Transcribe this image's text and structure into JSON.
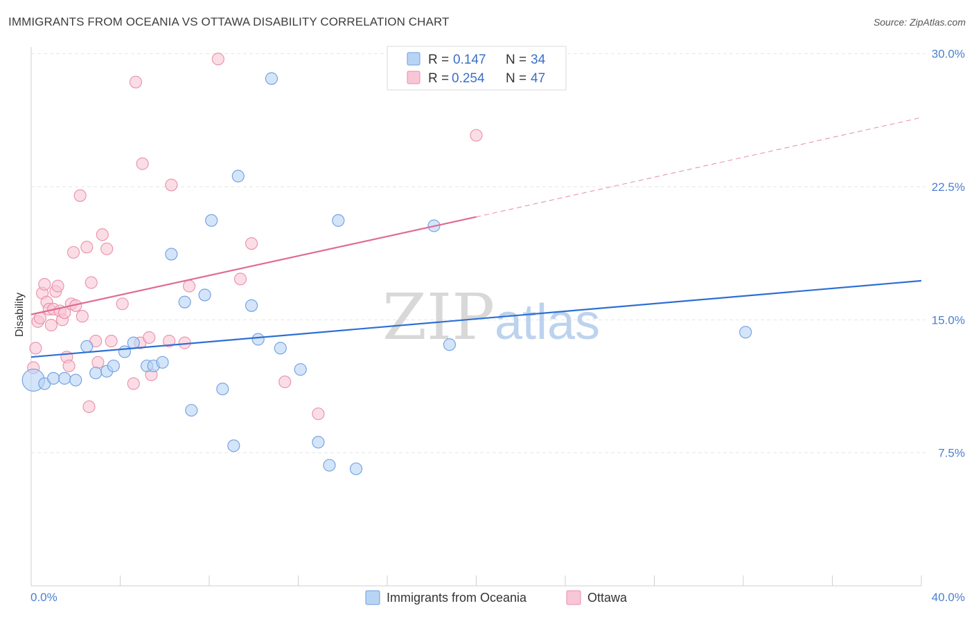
{
  "title": "IMMIGRANTS FROM OCEANIA VS OTTAWA DISABILITY CORRELATION CHART",
  "source": "Source: ZipAtlas.com",
  "watermark": {
    "zip": "ZIP",
    "atlas": "atlas"
  },
  "colors": {
    "blue_fill": "#b8d4f5",
    "blue_stroke": "#6d9de0",
    "blue_line": "#2d6fd4",
    "pink_fill": "#f8c6d6",
    "pink_stroke": "#e98ea9",
    "pink_line": "#e06a94",
    "grid": "#e6e6e6",
    "tick_text": "#4a7fd0"
  },
  "chart_data": {
    "type": "scatter",
    "title": "IMMIGRANTS FROM OCEANIA VS OTTAWA DISABILITY CORRELATION CHART",
    "xlabel": "",
    "ylabel": "Disability",
    "xlim": [
      0,
      40
    ],
    "ylim": [
      0,
      31
    ],
    "x_tick_labels": [
      "0.0%",
      "40.0%"
    ],
    "y_ticks": [
      7.5,
      15.0,
      22.5,
      30.0
    ],
    "y_tick_labels": [
      "7.5%",
      "15.0%",
      "22.5%",
      "30.0%"
    ],
    "grid": true,
    "legend": [
      {
        "name": "Immigrants from Oceania",
        "r_label": "R =",
        "r": "0.147",
        "n_label": "N =",
        "n": "34"
      },
      {
        "name": "Ottawa",
        "r_label": "R =",
        "r": "0.254",
        "n_label": "N =",
        "n": "47"
      }
    ],
    "series": [
      {
        "name": "Immigrants from Oceania",
        "color": "blue",
        "points": [
          [
            0.1,
            11.6
          ],
          [
            0.6,
            11.4
          ],
          [
            1.0,
            11.7
          ],
          [
            1.5,
            11.7
          ],
          [
            2.0,
            11.6
          ],
          [
            2.5,
            13.5
          ],
          [
            2.9,
            12.0
          ],
          [
            3.4,
            12.1
          ],
          [
            3.7,
            12.4
          ],
          [
            4.2,
            13.2
          ],
          [
            4.6,
            13.7
          ],
          [
            5.2,
            12.4
          ],
          [
            5.5,
            12.4
          ],
          [
            5.9,
            12.6
          ],
          [
            6.3,
            18.7
          ],
          [
            6.9,
            16.0
          ],
          [
            7.2,
            9.9
          ],
          [
            7.8,
            16.4
          ],
          [
            8.1,
            20.6
          ],
          [
            8.6,
            11.1
          ],
          [
            9.1,
            7.9
          ],
          [
            9.3,
            23.1
          ],
          [
            9.9,
            15.8
          ],
          [
            10.2,
            13.9
          ],
          [
            10.8,
            28.6
          ],
          [
            11.2,
            13.4
          ],
          [
            12.1,
            12.2
          ],
          [
            12.9,
            8.1
          ],
          [
            13.4,
            6.8
          ],
          [
            13.8,
            20.6
          ],
          [
            14.6,
            6.6
          ],
          [
            18.1,
            20.3
          ],
          [
            18.8,
            13.6
          ],
          [
            32.1,
            14.3
          ]
        ]
      },
      {
        "name": "Ottawa",
        "color": "pink",
        "points": [
          [
            0.1,
            12.3
          ],
          [
            0.2,
            13.4
          ],
          [
            0.3,
            14.9
          ],
          [
            0.4,
            15.1
          ],
          [
            0.5,
            16.5
          ],
          [
            0.6,
            17.0
          ],
          [
            0.7,
            16.0
          ],
          [
            0.8,
            15.6
          ],
          [
            0.9,
            14.7
          ],
          [
            1.0,
            15.6
          ],
          [
            1.1,
            16.6
          ],
          [
            1.2,
            16.9
          ],
          [
            1.3,
            15.5
          ],
          [
            1.4,
            15.0
          ],
          [
            1.5,
            15.4
          ],
          [
            1.6,
            12.9
          ],
          [
            1.7,
            12.4
          ],
          [
            1.8,
            15.9
          ],
          [
            1.9,
            18.8
          ],
          [
            2.0,
            15.8
          ],
          [
            2.3,
            15.2
          ],
          [
            2.5,
            19.1
          ],
          [
            2.6,
            10.1
          ],
          [
            2.7,
            17.1
          ],
          [
            2.9,
            13.8
          ],
          [
            3.0,
            12.6
          ],
          [
            3.2,
            19.8
          ],
          [
            3.4,
            19.0
          ],
          [
            3.6,
            13.8
          ],
          [
            4.1,
            15.9
          ],
          [
            2.2,
            22.0
          ],
          [
            4.6,
            11.4
          ],
          [
            4.7,
            28.4
          ],
          [
            4.9,
            13.7
          ],
          [
            5.0,
            23.8
          ],
          [
            5.3,
            14.0
          ],
          [
            5.4,
            11.9
          ],
          [
            6.2,
            13.8
          ],
          [
            6.3,
            22.6
          ],
          [
            6.9,
            13.7
          ],
          [
            7.1,
            16.9
          ],
          [
            8.4,
            29.7
          ],
          [
            9.4,
            17.3
          ],
          [
            9.9,
            19.3
          ],
          [
            11.4,
            11.5
          ],
          [
            12.9,
            9.7
          ],
          [
            20.0,
            25.4
          ]
        ]
      }
    ],
    "trend_lines": [
      {
        "series": "Immigrants from Oceania",
        "x": [
          0,
          40
        ],
        "y": [
          12.9,
          17.2
        ],
        "style": "solid"
      },
      {
        "series": "Ottawa",
        "x": [
          0,
          20
        ],
        "y": [
          15.3,
          20.8
        ],
        "style": "solid"
      },
      {
        "series": "Ottawa",
        "x": [
          20,
          40
        ],
        "y": [
          20.8,
          26.4
        ],
        "style": "dashed"
      }
    ]
  }
}
